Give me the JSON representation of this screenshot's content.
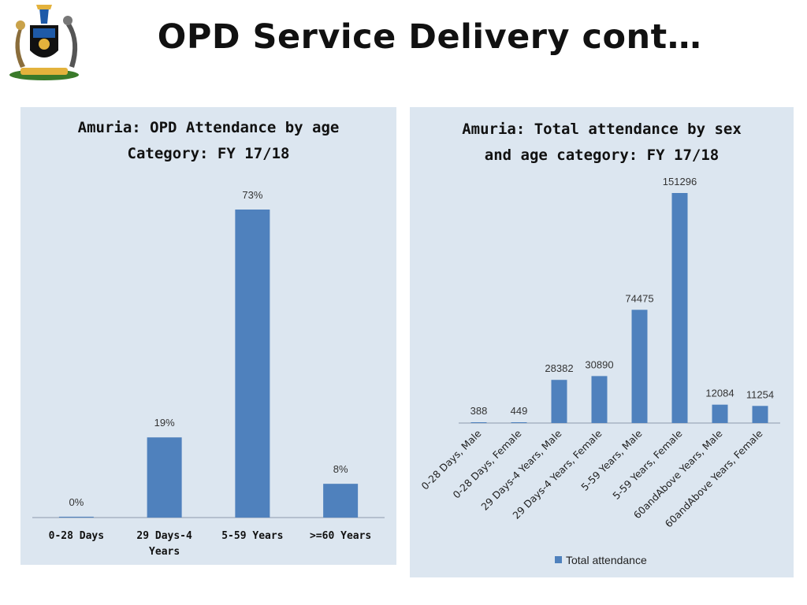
{
  "slide": {
    "title": "OPD Service Delivery cont…"
  },
  "colors": {
    "bar": "#4f81bd",
    "panel": "#dce6f0",
    "axis": "#8e9bab"
  },
  "chart_data": [
    {
      "type": "bar",
      "title": [
        "Amuria: OPD Attendance by age",
        "Category: FY 17/18"
      ],
      "categories": [
        "0-28 Days",
        "29 Days-4 Years",
        "5-59 Years",
        ">=60 Years"
      ],
      "category_lines": [
        [
          "0-28 Days"
        ],
        [
          "29 Days-4",
          "Years"
        ],
        [
          "5-59 Years"
        ],
        [
          ">=60 Years"
        ]
      ],
      "values": [
        0.2,
        19,
        73,
        8
      ],
      "data_labels": [
        "0%",
        "19%",
        "73%",
        "8%"
      ],
      "ylim": [
        0,
        73
      ],
      "unit": "%",
      "xlabel": "",
      "ylabel": "",
      "grid": false,
      "legend": "none"
    },
    {
      "type": "bar",
      "title": [
        "Amuria: Total attendance by sex",
        "and age category: FY 17/18"
      ],
      "categories": [
        "0-28 Days, Male",
        "0-28 Days, Female",
        "29 Days-4 Years, Male",
        "29 Days-4 Years, Female",
        "5-59 Years, Male",
        "5-59 Years, Female",
        "60andAbove Years, Male",
        "60andAbove Years, Female"
      ],
      "series": [
        {
          "name": "Total attendance",
          "values": [
            388,
            449,
            28382,
            30890,
            74475,
            151296,
            12084,
            11254
          ]
        }
      ],
      "data_labels": [
        "388",
        "449",
        "28382",
        "30890",
        "74475",
        "151296",
        "12084",
        "11254"
      ],
      "ylim": [
        0,
        151296
      ],
      "xlabel": "",
      "ylabel": "",
      "grid": false,
      "legend": "bottom"
    }
  ]
}
